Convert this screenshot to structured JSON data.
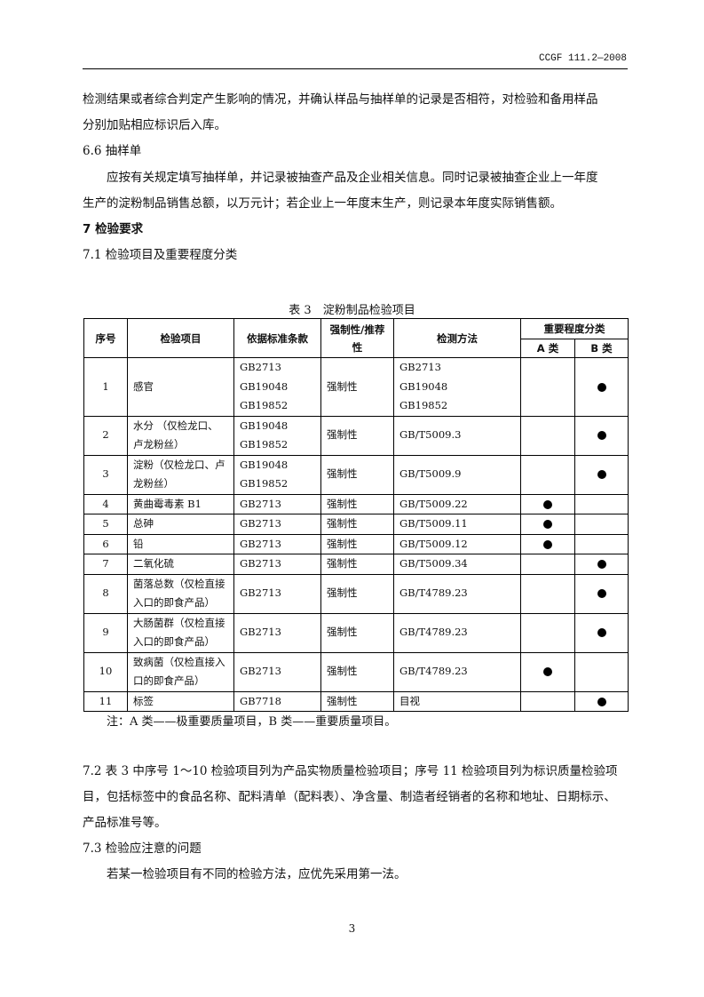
{
  "header": {
    "doc_code": "CCGF 111.2—2008"
  },
  "paragraphs": [
    "检测结果或者综合判定产生影响的情况，并确认样品与抽样单的记录是否相符，对检验和备用样品",
    "分别加贴相应标识后入库。",
    "6.6 抽样单",
    "应按有关规定填写抽样单，并记录被抽查产品及企业相关信息。同时记录被抽查企业上一年度",
    "生产的淀粉制品销售总额，以万元计；若企业上一年度末生产，则记录本年度实际销售额。",
    "7 检验要求",
    "7.1 检验项目及重要程度分类"
  ],
  "table": {
    "caption": "表 3　淀粉制品检验项目",
    "headers": {
      "no": "序号",
      "item": "检验项目",
      "standard": "依据标准条款",
      "type_line1": "强制性/推荐",
      "type_line2": "性",
      "method": "检测方法",
      "importance": "重要程度分类",
      "a": "A 类",
      "b": "B 类"
    },
    "rows": [
      {
        "no": "1",
        "item": [
          "感官"
        ],
        "standard": [
          "GB2713",
          "GB19048",
          "GB19852"
        ],
        "type": "强制性",
        "method": [
          "GB2713",
          "GB19048",
          "GB19852"
        ],
        "a": false,
        "b": true
      },
      {
        "no": "2",
        "item": [
          "水分 （仅检龙口、",
          "卢龙粉丝）"
        ],
        "standard": [
          "GB19048",
          "GB19852"
        ],
        "type": "强制性",
        "method": [
          "GB/T5009.3"
        ],
        "a": false,
        "b": true
      },
      {
        "no": "3",
        "item": [
          "淀粉（仅检龙口、卢",
          "龙粉丝）"
        ],
        "standard": [
          "GB19048",
          "GB19852"
        ],
        "type": "强制性",
        "method": [
          "GB/T5009.9"
        ],
        "a": false,
        "b": true
      },
      {
        "no": "4",
        "item": [
          "黄曲霉毒素 B1"
        ],
        "standard": [
          "GB2713"
        ],
        "type": "强制性",
        "method": [
          "GB/T5009.22"
        ],
        "a": true,
        "b": false
      },
      {
        "no": "5",
        "item": [
          "总砷"
        ],
        "standard": [
          "GB2713"
        ],
        "type": "强制性",
        "method": [
          "GB/T5009.11"
        ],
        "a": true,
        "b": false
      },
      {
        "no": "6",
        "item": [
          "铅"
        ],
        "standard": [
          "GB2713"
        ],
        "type": "强制性",
        "method": [
          "GB/T5009.12"
        ],
        "a": true,
        "b": false
      },
      {
        "no": "7",
        "item": [
          "二氧化硫"
        ],
        "standard": [
          "GB2713"
        ],
        "type": "强制性",
        "method": [
          "GB/T5009.34"
        ],
        "a": false,
        "b": true
      },
      {
        "no": "8",
        "item": [
          "菌落总数（仅检直接",
          "入口的即食产品）"
        ],
        "standard": [
          "GB2713"
        ],
        "type": "强制性",
        "method": [
          "GB/T4789.23"
        ],
        "a": false,
        "b": true
      },
      {
        "no": "9",
        "item": [
          "大肠菌群（仅检直接",
          "入口的即食产品）"
        ],
        "standard": [
          "GB2713"
        ],
        "type": "强制性",
        "method": [
          "GB/T4789.23"
        ],
        "a": false,
        "b": true
      },
      {
        "no": "10",
        "item": [
          "致病菌（仅检直接入",
          "口的即食产品）"
        ],
        "standard": [
          "GB2713"
        ],
        "type": "强制性",
        "method": [
          "GB/T4789.23"
        ],
        "a": true,
        "b": false
      },
      {
        "no": "11",
        "item": [
          "标签"
        ],
        "standard": [
          "GB7718"
        ],
        "type": "强制性",
        "method": [
          "目视"
        ],
        "a": false,
        "b": true
      }
    ],
    "note": "注：A 类——极重要质量项目，B 类——重要质量项目。"
  },
  "paragraphs2": [
    "7.2 表 3 中序号 1～10 检验项目列为产品实物质量检验项目；序号 11 检验项目列为标识质量检验项",
    "目，包括标签中的食品名称、配料清单（配料表）、净含量、制造者经销者的名称和地址、日期标示、",
    "产品标准号等。",
    "7.3 检验应注意的问题",
    "若某一检验项目有不同的检验方法，应优先采用第一法。"
  ],
  "footer": {
    "page_number": "3"
  }
}
